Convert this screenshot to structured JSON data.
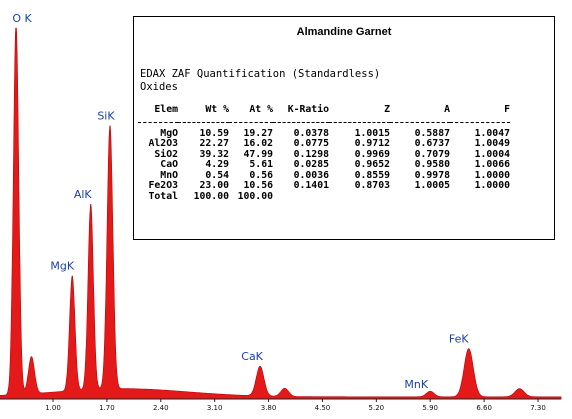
{
  "chart_data": {
    "type": "area",
    "fill_color": "#e41a1a",
    "x_ticks": [
      "1.00",
      "1.70",
      "2.40",
      "3.10",
      "3.80",
      "4.50",
      "5.20",
      "5.90",
      "6.60",
      "7.30"
    ],
    "xlim": [
      0.3,
      7.6
    ],
    "ylim": [
      0,
      100
    ],
    "peaks": [
      {
        "label": "O K",
        "x": 0.52,
        "height": 100
      },
      {
        "label": "MgK",
        "x": 1.25,
        "height": 31
      },
      {
        "label": "AlK",
        "x": 1.49,
        "height": 50
      },
      {
        "label": "SiK",
        "x": 1.74,
        "height": 71
      },
      {
        "label": "CaK",
        "x": 3.69,
        "height": 8
      },
      {
        "label": "MnK",
        "x": 5.9,
        "height": 1.5
      },
      {
        "label": "FeK",
        "x": 6.4,
        "height": 13
      }
    ]
  },
  "table": {
    "title": "Almandine Garnet",
    "method": "EDAX ZAF Quantification (Standardless)",
    "subtitle": "Oxides",
    "headers": [
      "Elem",
      "Wt %",
      "At %",
      "K-Ratio",
      "Z",
      "A",
      "F"
    ],
    "rows": [
      [
        "MgO",
        "10.59",
        "19.27",
        "0.0378",
        "1.0015",
        "0.5887",
        "1.0047"
      ],
      [
        "Al2O3",
        "22.27",
        "16.02",
        "0.0775",
        "0.9712",
        "0.6737",
        "1.0049"
      ],
      [
        "SiO2",
        "39.32",
        "47.99",
        "0.1298",
        "0.9969",
        "0.7079",
        "1.0004"
      ],
      [
        "CaO",
        "4.29",
        "5.61",
        "0.0285",
        "0.9652",
        "0.9580",
        "1.0066"
      ],
      [
        "MnO",
        "0.54",
        "0.56",
        "0.0036",
        "0.8559",
        "0.9978",
        "1.0000"
      ],
      [
        "Fe2O3",
        "23.00",
        "10.56",
        "0.1401",
        "0.8703",
        "1.0005",
        "1.0000"
      ],
      [
        "Total",
        "100.00",
        "100.00",
        "",
        "",
        "",
        ""
      ]
    ]
  }
}
